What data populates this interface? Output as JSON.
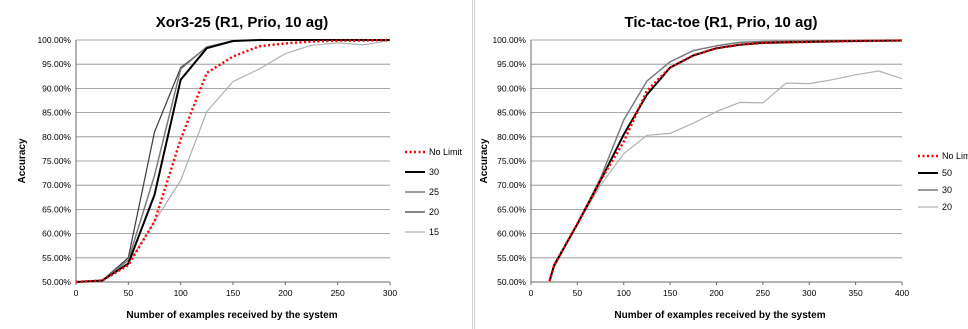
{
  "chart_data": [
    {
      "type": "line",
      "title": "Xor3-25 (R1, Prio, 10 ag)",
      "xlabel": "Number of examples received by the system",
      "ylabel": "Accuracy",
      "xlim": [
        0,
        300
      ],
      "ylim": [
        50,
        100
      ],
      "x_ticks": [
        "0",
        "50",
        "100",
        "150",
        "200",
        "250",
        "300"
      ],
      "y_ticks": [
        "50.00%",
        "55.00%",
        "60.00%",
        "65.00%",
        "70.00%",
        "75.00%",
        "80.00%",
        "85.00%",
        "90.00%",
        "95.00%",
        "100.00%"
      ],
      "grid": true,
      "legend_position": "right",
      "series": [
        {
          "name": "No Limit",
          "color": "#ff0000",
          "dash": true,
          "width": 2.5,
          "x": [
            0,
            25,
            50,
            75,
            100,
            125,
            150,
            175,
            200,
            225,
            250,
            275,
            300
          ],
          "y": [
            50.0,
            50.3,
            53.5,
            62.5,
            79.5,
            93.2,
            96.6,
            98.7,
            99.3,
            99.7,
            99.85,
            99.9,
            100.0
          ]
        },
        {
          "name": "30",
          "color": "#000000",
          "dash": false,
          "width": 2,
          "x": [
            0,
            25,
            50,
            75,
            100,
            125,
            150,
            175,
            200,
            250,
            300
          ],
          "y": [
            50.0,
            50.3,
            53.8,
            68.0,
            91.8,
            98.3,
            99.8,
            100.0,
            100.0,
            100.0,
            100.0
          ]
        },
        {
          "name": "25",
          "color": "#7a7a7a",
          "dash": false,
          "width": 1.5,
          "x": [
            0,
            25,
            50,
            75,
            100,
            125,
            150,
            175,
            200,
            250,
            300
          ],
          "y": [
            50.0,
            50.3,
            54.5,
            72.0,
            94.0,
            98.6,
            99.8,
            100.0,
            100.0,
            100.0,
            100.0
          ]
        },
        {
          "name": "20",
          "color": "#3c3c3c",
          "dash": false,
          "width": 1.2,
          "x": [
            0,
            25,
            50,
            75,
            100,
            125,
            150,
            175,
            200,
            250,
            300
          ],
          "y": [
            50.0,
            50.3,
            55.0,
            81.0,
            94.3,
            98.5,
            99.8,
            100.0,
            100.0,
            100.0,
            100.0
          ]
        },
        {
          "name": "15",
          "color": "#b0b0b0",
          "dash": false,
          "width": 1.2,
          "x": [
            0,
            25,
            50,
            75,
            100,
            125,
            150,
            175,
            200,
            225,
            250,
            275,
            300
          ],
          "y": [
            50.0,
            50.2,
            53.8,
            62.5,
            71.0,
            85.2,
            91.4,
            94.0,
            97.2,
            98.9,
            99.4,
            99.0,
            99.9
          ]
        }
      ]
    },
    {
      "type": "line",
      "title": "Tic-tac-toe (R1, Prio, 10 ag)",
      "xlabel": "Number of examples received by the system",
      "ylabel": "Accuracy",
      "xlim": [
        0,
        400
      ],
      "ylim": [
        50,
        100
      ],
      "x_ticks": [
        "0",
        "50",
        "100",
        "150",
        "200",
        "250",
        "300",
        "350",
        "400"
      ],
      "y_ticks": [
        "50.00%",
        "55.00%",
        "60.00%",
        "65.00%",
        "70.00%",
        "75.00%",
        "80.00%",
        "85.00%",
        "90.00%",
        "95.00%",
        "100.00%"
      ],
      "grid": true,
      "legend_position": "right",
      "series": [
        {
          "name": "No Limi",
          "color": "#ff0000",
          "dash": true,
          "width": 2.5,
          "x": [
            20,
            25,
            50,
            75,
            100,
            125,
            150,
            175,
            200,
            225,
            250,
            300,
            350,
            400
          ],
          "y": [
            50.2,
            53.5,
            62.0,
            71.0,
            79.0,
            89.5,
            94.3,
            96.8,
            98.3,
            99.0,
            99.4,
            99.6,
            99.8,
            99.9
          ]
        },
        {
          "name": "50",
          "color": "#000000",
          "dash": false,
          "width": 2,
          "x": [
            20,
            25,
            50,
            75,
            100,
            125,
            150,
            175,
            200,
            225,
            250,
            300,
            350,
            400
          ],
          "y": [
            50.2,
            53.5,
            62.0,
            71.0,
            80.5,
            88.7,
            94.3,
            96.8,
            98.3,
            99.0,
            99.4,
            99.6,
            99.8,
            99.9
          ]
        },
        {
          "name": "30",
          "color": "#7a7a7a",
          "dash": false,
          "width": 1.5,
          "x": [
            20,
            25,
            50,
            75,
            100,
            125,
            150,
            175,
            200,
            225,
            250,
            300,
            350,
            400
          ],
          "y": [
            50.2,
            53.5,
            62.0,
            71.5,
            83.5,
            91.5,
            95.5,
            97.8,
            98.8,
            99.5,
            99.7,
            99.85,
            99.9,
            99.95
          ]
        },
        {
          "name": "20",
          "color": "#b0b0b0",
          "dash": false,
          "width": 1.2,
          "x": [
            20,
            25,
            50,
            75,
            100,
            125,
            150,
            175,
            200,
            225,
            250,
            275,
            300,
            325,
            350,
            375,
            400
          ],
          "y": [
            50.2,
            53.0,
            62.0,
            70.0,
            76.5,
            80.3,
            80.7,
            82.8,
            85.2,
            87.1,
            87.0,
            91.1,
            91.0,
            91.8,
            92.8,
            93.6,
            92.0
          ]
        }
      ]
    }
  ]
}
